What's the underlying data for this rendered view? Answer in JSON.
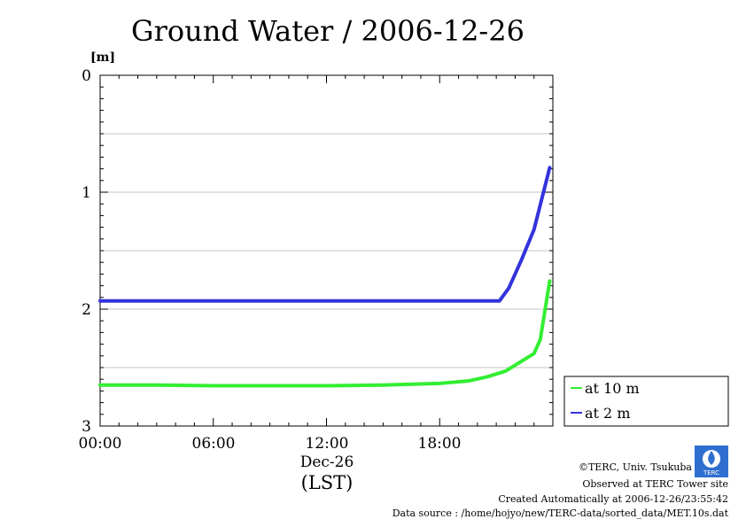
{
  "chart_data": {
    "type": "line",
    "title": "Ground Water / 2006-12-26",
    "ylabel": "[m]",
    "xlabel": "(LST)",
    "x_date_label": "Dec-26",
    "xlim": [
      "00:00",
      "24:00"
    ],
    "ylim": [
      0,
      3
    ],
    "y_inverted": true,
    "y_ticks": [
      "0",
      "1",
      "2",
      "3"
    ],
    "x_ticks": [
      "00:00",
      "06:00",
      "12:00",
      "18:00"
    ],
    "grid": true,
    "legend_position": "right, outside plot",
    "series": [
      {
        "name": "at 10 m",
        "color": "#33ee33",
        "points": [
          {
            "x": "00:00",
            "y": 2.65
          },
          {
            "x": "03:00",
            "y": 2.65
          },
          {
            "x": "06:00",
            "y": 2.655
          },
          {
            "x": "09:00",
            "y": 2.655
          },
          {
            "x": "12:00",
            "y": 2.655
          },
          {
            "x": "15:00",
            "y": 2.65
          },
          {
            "x": "18:00",
            "y": 2.635
          },
          {
            "x": "19:30",
            "y": 2.615
          },
          {
            "x": "20:30",
            "y": 2.58
          },
          {
            "x": "21:30",
            "y": 2.53
          },
          {
            "x": "22:00",
            "y": 2.48
          },
          {
            "x": "23:00",
            "y": 2.38
          },
          {
            "x": "23:20",
            "y": 2.26
          },
          {
            "x": "23:50",
            "y": 1.76
          }
        ]
      },
      {
        "name": "at 2 m",
        "color": "#3333dd",
        "points": [
          {
            "x": "00:00",
            "y": 1.93
          },
          {
            "x": "06:00",
            "y": 1.93
          },
          {
            "x": "12:00",
            "y": 1.93
          },
          {
            "x": "18:00",
            "y": 1.93
          },
          {
            "x": "21:10",
            "y": 1.93
          },
          {
            "x": "21:40",
            "y": 1.82
          },
          {
            "x": "22:20",
            "y": 1.58
          },
          {
            "x": "23:00",
            "y": 1.32
          },
          {
            "x": "23:50",
            "y": 0.79
          }
        ]
      }
    ]
  },
  "credits": {
    "copyright": "©TERC, Univ. Tsukuba",
    "observed": "Observed at TERC Tower site",
    "created": "Created Automatically at 2006-12-26/23:55:42",
    "source": "Data source : /home/hojyo/new/TERC-data/sorted_data/MET.10s.dat"
  }
}
